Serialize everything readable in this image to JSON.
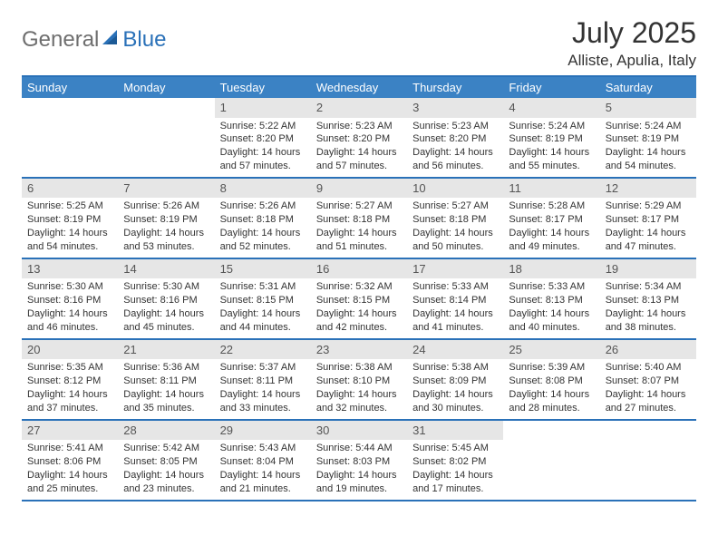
{
  "logo": {
    "general": "General",
    "blue": "Blue"
  },
  "title": "July 2025",
  "location": "Alliste, Apulia, Italy",
  "colors": {
    "header_bg": "#3b82c4",
    "header_border": "#2a71b8",
    "daynum_bg": "#e6e6e6",
    "text": "#333333",
    "logo_gray": "#6e6e6e",
    "logo_blue": "#2a71b8",
    "page_bg": "#ffffff"
  },
  "typography": {
    "title_fontsize": 32,
    "location_fontsize": 17,
    "weekday_fontsize": 13,
    "daynum_fontsize": 13,
    "cell_fontsize": 11
  },
  "weekdays": [
    "Sunday",
    "Monday",
    "Tuesday",
    "Wednesday",
    "Thursday",
    "Friday",
    "Saturday"
  ],
  "weeks": [
    [
      {
        "day": "",
        "sunrise": "",
        "sunset": "",
        "daylight": ""
      },
      {
        "day": "",
        "sunrise": "",
        "sunset": "",
        "daylight": ""
      },
      {
        "day": "1",
        "sunrise": "Sunrise: 5:22 AM",
        "sunset": "Sunset: 8:20 PM",
        "daylight": "Daylight: 14 hours and 57 minutes."
      },
      {
        "day": "2",
        "sunrise": "Sunrise: 5:23 AM",
        "sunset": "Sunset: 8:20 PM",
        "daylight": "Daylight: 14 hours and 57 minutes."
      },
      {
        "day": "3",
        "sunrise": "Sunrise: 5:23 AM",
        "sunset": "Sunset: 8:20 PM",
        "daylight": "Daylight: 14 hours and 56 minutes."
      },
      {
        "day": "4",
        "sunrise": "Sunrise: 5:24 AM",
        "sunset": "Sunset: 8:19 PM",
        "daylight": "Daylight: 14 hours and 55 minutes."
      },
      {
        "day": "5",
        "sunrise": "Sunrise: 5:24 AM",
        "sunset": "Sunset: 8:19 PM",
        "daylight": "Daylight: 14 hours and 54 minutes."
      }
    ],
    [
      {
        "day": "6",
        "sunrise": "Sunrise: 5:25 AM",
        "sunset": "Sunset: 8:19 PM",
        "daylight": "Daylight: 14 hours and 54 minutes."
      },
      {
        "day": "7",
        "sunrise": "Sunrise: 5:26 AM",
        "sunset": "Sunset: 8:19 PM",
        "daylight": "Daylight: 14 hours and 53 minutes."
      },
      {
        "day": "8",
        "sunrise": "Sunrise: 5:26 AM",
        "sunset": "Sunset: 8:18 PM",
        "daylight": "Daylight: 14 hours and 52 minutes."
      },
      {
        "day": "9",
        "sunrise": "Sunrise: 5:27 AM",
        "sunset": "Sunset: 8:18 PM",
        "daylight": "Daylight: 14 hours and 51 minutes."
      },
      {
        "day": "10",
        "sunrise": "Sunrise: 5:27 AM",
        "sunset": "Sunset: 8:18 PM",
        "daylight": "Daylight: 14 hours and 50 minutes."
      },
      {
        "day": "11",
        "sunrise": "Sunrise: 5:28 AM",
        "sunset": "Sunset: 8:17 PM",
        "daylight": "Daylight: 14 hours and 49 minutes."
      },
      {
        "day": "12",
        "sunrise": "Sunrise: 5:29 AM",
        "sunset": "Sunset: 8:17 PM",
        "daylight": "Daylight: 14 hours and 47 minutes."
      }
    ],
    [
      {
        "day": "13",
        "sunrise": "Sunrise: 5:30 AM",
        "sunset": "Sunset: 8:16 PM",
        "daylight": "Daylight: 14 hours and 46 minutes."
      },
      {
        "day": "14",
        "sunrise": "Sunrise: 5:30 AM",
        "sunset": "Sunset: 8:16 PM",
        "daylight": "Daylight: 14 hours and 45 minutes."
      },
      {
        "day": "15",
        "sunrise": "Sunrise: 5:31 AM",
        "sunset": "Sunset: 8:15 PM",
        "daylight": "Daylight: 14 hours and 44 minutes."
      },
      {
        "day": "16",
        "sunrise": "Sunrise: 5:32 AM",
        "sunset": "Sunset: 8:15 PM",
        "daylight": "Daylight: 14 hours and 42 minutes."
      },
      {
        "day": "17",
        "sunrise": "Sunrise: 5:33 AM",
        "sunset": "Sunset: 8:14 PM",
        "daylight": "Daylight: 14 hours and 41 minutes."
      },
      {
        "day": "18",
        "sunrise": "Sunrise: 5:33 AM",
        "sunset": "Sunset: 8:13 PM",
        "daylight": "Daylight: 14 hours and 40 minutes."
      },
      {
        "day": "19",
        "sunrise": "Sunrise: 5:34 AM",
        "sunset": "Sunset: 8:13 PM",
        "daylight": "Daylight: 14 hours and 38 minutes."
      }
    ],
    [
      {
        "day": "20",
        "sunrise": "Sunrise: 5:35 AM",
        "sunset": "Sunset: 8:12 PM",
        "daylight": "Daylight: 14 hours and 37 minutes."
      },
      {
        "day": "21",
        "sunrise": "Sunrise: 5:36 AM",
        "sunset": "Sunset: 8:11 PM",
        "daylight": "Daylight: 14 hours and 35 minutes."
      },
      {
        "day": "22",
        "sunrise": "Sunrise: 5:37 AM",
        "sunset": "Sunset: 8:11 PM",
        "daylight": "Daylight: 14 hours and 33 minutes."
      },
      {
        "day": "23",
        "sunrise": "Sunrise: 5:38 AM",
        "sunset": "Sunset: 8:10 PM",
        "daylight": "Daylight: 14 hours and 32 minutes."
      },
      {
        "day": "24",
        "sunrise": "Sunrise: 5:38 AM",
        "sunset": "Sunset: 8:09 PM",
        "daylight": "Daylight: 14 hours and 30 minutes."
      },
      {
        "day": "25",
        "sunrise": "Sunrise: 5:39 AM",
        "sunset": "Sunset: 8:08 PM",
        "daylight": "Daylight: 14 hours and 28 minutes."
      },
      {
        "day": "26",
        "sunrise": "Sunrise: 5:40 AM",
        "sunset": "Sunset: 8:07 PM",
        "daylight": "Daylight: 14 hours and 27 minutes."
      }
    ],
    [
      {
        "day": "27",
        "sunrise": "Sunrise: 5:41 AM",
        "sunset": "Sunset: 8:06 PM",
        "daylight": "Daylight: 14 hours and 25 minutes."
      },
      {
        "day": "28",
        "sunrise": "Sunrise: 5:42 AM",
        "sunset": "Sunset: 8:05 PM",
        "daylight": "Daylight: 14 hours and 23 minutes."
      },
      {
        "day": "29",
        "sunrise": "Sunrise: 5:43 AM",
        "sunset": "Sunset: 8:04 PM",
        "daylight": "Daylight: 14 hours and 21 minutes."
      },
      {
        "day": "30",
        "sunrise": "Sunrise: 5:44 AM",
        "sunset": "Sunset: 8:03 PM",
        "daylight": "Daylight: 14 hours and 19 minutes."
      },
      {
        "day": "31",
        "sunrise": "Sunrise: 5:45 AM",
        "sunset": "Sunset: 8:02 PM",
        "daylight": "Daylight: 14 hours and 17 minutes."
      },
      {
        "day": "",
        "sunrise": "",
        "sunset": "",
        "daylight": ""
      },
      {
        "day": "",
        "sunrise": "",
        "sunset": "",
        "daylight": ""
      }
    ]
  ]
}
